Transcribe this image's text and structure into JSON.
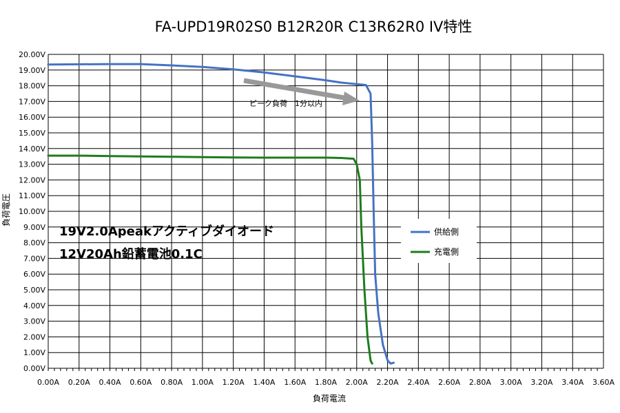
{
  "chart_data": {
    "type": "line",
    "title": "FA-UPD19R02S0 B12R20R C13R62R0 IV特性",
    "xlabel": "負荷電流",
    "ylabel": "負荷電圧",
    "xlim": [
      0,
      3.6
    ],
    "ylim": [
      0,
      20
    ],
    "x_ticks": [
      "0.00A",
      "0.20A",
      "0.40A",
      "0.60A",
      "0.80A",
      "1.00A",
      "1.20A",
      "1.40A",
      "1.60A",
      "1.80A",
      "2.00A",
      "2.20A",
      "2.40A",
      "2.60A",
      "2.80A",
      "3.00A",
      "3.20A",
      "3.40A",
      "3.60A"
    ],
    "y_ticks": [
      "0.00V",
      "1.00V",
      "2.00V",
      "3.00V",
      "4.00V",
      "5.00V",
      "6.00V",
      "7.00V",
      "8.00V",
      "9.00V",
      "10.00V",
      "11.00V",
      "12.00V",
      "13.00V",
      "14.00V",
      "15.00V",
      "16.00V",
      "17.00V",
      "18.00V",
      "19.00V",
      "20.00V"
    ],
    "grid": true,
    "legend_position": "right",
    "series": [
      {
        "name": "供給側",
        "color": "#4472C4",
        "x": [
          0.0,
          0.2,
          0.4,
          0.6,
          0.8,
          1.0,
          1.2,
          1.4,
          1.6,
          1.8,
          1.9,
          2.0,
          2.06,
          2.09,
          2.1,
          2.11,
          2.12,
          2.14,
          2.17,
          2.2,
          2.22,
          2.24
        ],
        "y": [
          19.35,
          19.37,
          19.38,
          19.38,
          19.3,
          19.2,
          19.05,
          18.85,
          18.6,
          18.35,
          18.2,
          18.1,
          18.05,
          17.5,
          14.5,
          10.0,
          6.0,
          3.5,
          1.5,
          0.5,
          0.3,
          0.35
        ]
      },
      {
        "name": "充電側",
        "color": "#1E7B1E",
        "x": [
          0.0,
          0.2,
          0.4,
          0.6,
          0.8,
          1.0,
          1.2,
          1.4,
          1.6,
          1.8,
          1.9,
          1.98,
          2.0,
          2.02,
          2.03,
          2.05,
          2.07,
          2.09,
          2.1
        ],
        "y": [
          13.55,
          13.55,
          13.52,
          13.5,
          13.48,
          13.45,
          13.43,
          13.42,
          13.42,
          13.42,
          13.4,
          13.35,
          13.0,
          12.0,
          9.0,
          5.0,
          2.0,
          0.5,
          0.3
        ]
      }
    ],
    "annotations": [
      {
        "text": "19V2.0Apeakアクティブダイオード"
      },
      {
        "text": "12V20Ah鉛蓄電池0.1C"
      },
      {
        "text": "ピーク負荷　1分以内",
        "arrow_color": "#999999"
      }
    ]
  }
}
